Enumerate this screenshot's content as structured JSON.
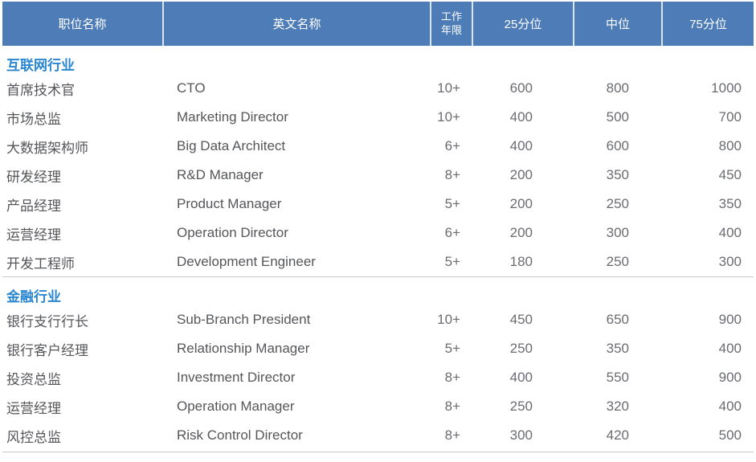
{
  "colors": {
    "header_bg": "#4d7cb7",
    "header_text": "#ffffff",
    "header_separator": "#dbe4f0",
    "section_title_text": "#2b86d0",
    "body_text": "#55565a",
    "number_text": "#6b6c71",
    "divider": "#c9c9c9"
  },
  "table": {
    "columns": [
      {
        "key": "zh",
        "label": "职位名称"
      },
      {
        "key": "en",
        "label": "英文名称"
      },
      {
        "key": "years",
        "label": "工作年限",
        "label_lines": [
          "工作",
          "年限"
        ]
      },
      {
        "key": "p25",
        "label": "25分位"
      },
      {
        "key": "median",
        "label": "中位"
      },
      {
        "key": "p75",
        "label": "75分位"
      }
    ],
    "sections": [
      {
        "title": "互联网行业",
        "rows": [
          [
            "首席技术官",
            "CTO",
            "10+",
            "600",
            "800",
            "1000"
          ],
          [
            "市场总监",
            "Marketing Director",
            "10+",
            "400",
            "500",
            "700"
          ],
          [
            "大数据架构师",
            "Big Data Architect",
            "6+",
            "400",
            "600",
            "800"
          ],
          [
            "研发经理",
            "R&D Manager",
            "8+",
            "200",
            "350",
            "450"
          ],
          [
            "产品经理",
            "Product Manager",
            "5+",
            "200",
            "250",
            "350"
          ],
          [
            "运营经理",
            "Operation Director",
            "6+",
            "200",
            "300",
            "400"
          ],
          [
            "开发工程师",
            "Development Engineer",
            "5+",
            "180",
            "250",
            "300"
          ]
        ]
      },
      {
        "title": "金融行业",
        "rows": [
          [
            "银行支行行长",
            "Sub-Branch President",
            "10+",
            "450",
            "650",
            "900"
          ],
          [
            "银行客户经理",
            "Relationship Manager",
            "5+",
            "250",
            "350",
            "400"
          ],
          [
            "投资总监",
            "Investment Director",
            "8+",
            "400",
            "550",
            "900"
          ],
          [
            "运营经理",
            "Operation Manager",
            "8+",
            "250",
            "320",
            "400"
          ],
          [
            "风控总监",
            "Risk Control Director",
            "8+",
            "300",
            "420",
            "500"
          ]
        ]
      }
    ]
  }
}
